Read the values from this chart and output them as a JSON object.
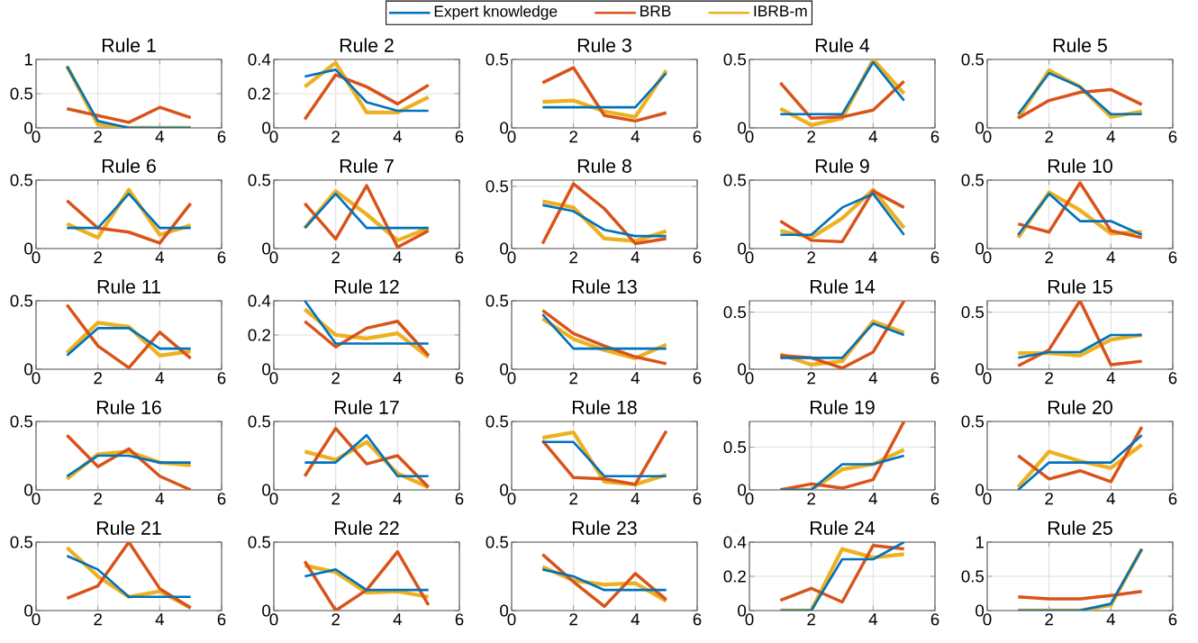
{
  "chart_data": [
    {
      "type": "line",
      "title": "Rule 1",
      "x": [
        1,
        2,
        3,
        4,
        5
      ],
      "xlim": [
        0,
        6
      ],
      "xticks": [
        0,
        2,
        4,
        6
      ],
      "ylim": [
        0,
        1
      ],
      "yticks": [
        0,
        0.5,
        1
      ],
      "grid": true,
      "legend": "top",
      "series": [
        {
          "name": "Expert knowledge",
          "color": "#0072bd",
          "values": [
            0.9,
            0.1,
            0,
            0,
            0
          ]
        },
        {
          "name": "BRB",
          "color": "#d95319",
          "values": [
            0.28,
            0.18,
            0.08,
            0.3,
            0.15
          ]
        },
        {
          "name": "IBRB-m",
          "color": "#edb120",
          "values": [
            0.9,
            0.05,
            0,
            0,
            0
          ]
        }
      ]
    },
    {
      "type": "line",
      "title": "Rule 2",
      "x": [
        1,
        2,
        3,
        4,
        5
      ],
      "xlim": [
        0,
        6
      ],
      "xticks": [
        0,
        2,
        4,
        6
      ],
      "ylim": [
        0,
        0.4
      ],
      "yticks": [
        0,
        0.2,
        0.4
      ],
      "grid": true,
      "series": [
        {
          "color": "#0072bd",
          "values": [
            0.3,
            0.34,
            0.15,
            0.1,
            0.1
          ]
        },
        {
          "color": "#d95319",
          "values": [
            0.05,
            0.31,
            0.24,
            0.14,
            0.25
          ]
        },
        {
          "color": "#edb120",
          "values": [
            0.24,
            0.38,
            0.09,
            0.09,
            0.18
          ]
        }
      ]
    },
    {
      "type": "line",
      "title": "Rule 3",
      "x": [
        1,
        2,
        3,
        4,
        5
      ],
      "xlim": [
        0,
        6
      ],
      "xticks": [
        0,
        2,
        4,
        6
      ],
      "ylim": [
        0,
        0.5
      ],
      "yticks": [
        0,
        0.5
      ],
      "grid": true,
      "series": [
        {
          "color": "#0072bd",
          "values": [
            0.15,
            0.15,
            0.15,
            0.15,
            0.4
          ]
        },
        {
          "color": "#d95319",
          "values": [
            0.33,
            0.44,
            0.09,
            0.05,
            0.11
          ]
        },
        {
          "color": "#edb120",
          "values": [
            0.19,
            0.2,
            0.12,
            0.08,
            0.42
          ]
        }
      ]
    },
    {
      "type": "line",
      "title": "Rule 4",
      "x": [
        1,
        2,
        3,
        4,
        5
      ],
      "xlim": [
        0,
        6
      ],
      "xticks": [
        0,
        2,
        4,
        6
      ],
      "ylim": [
        0,
        0.5
      ],
      "yticks": [
        0,
        0.5
      ],
      "grid": true,
      "series": [
        {
          "color": "#0072bd",
          "values": [
            0.1,
            0.1,
            0.1,
            0.48,
            0.2
          ]
        },
        {
          "color": "#d95319",
          "values": [
            0.33,
            0.07,
            0.08,
            0.13,
            0.34
          ]
        },
        {
          "color": "#edb120",
          "values": [
            0.14,
            0.02,
            0.07,
            0.5,
            0.25
          ]
        }
      ]
    },
    {
      "type": "line",
      "title": "Rule 5",
      "x": [
        1,
        2,
        3,
        4,
        5
      ],
      "xlim": [
        0,
        6
      ],
      "xticks": [
        0,
        2,
        4,
        6
      ],
      "ylim": [
        0,
        0.5
      ],
      "yticks": [
        0,
        0.5
      ],
      "grid": true,
      "series": [
        {
          "color": "#0072bd",
          "values": [
            0.1,
            0.4,
            0.3,
            0.1,
            0.1
          ]
        },
        {
          "color": "#d95319",
          "values": [
            0.07,
            0.2,
            0.26,
            0.28,
            0.17
          ]
        },
        {
          "color": "#edb120",
          "values": [
            0.07,
            0.42,
            0.3,
            0.08,
            0.12
          ]
        }
      ]
    },
    {
      "type": "line",
      "title": "Rule 6",
      "x": [
        1,
        2,
        3,
        4,
        5
      ],
      "xlim": [
        0,
        6
      ],
      "xticks": [
        0,
        2,
        4,
        6
      ],
      "ylim": [
        0,
        0.5
      ],
      "yticks": [
        0,
        0.5
      ],
      "grid": true,
      "series": [
        {
          "color": "#0072bd",
          "values": [
            0.15,
            0.15,
            0.4,
            0.15,
            0.15
          ]
        },
        {
          "color": "#d95319",
          "values": [
            0.35,
            0.15,
            0.12,
            0.04,
            0.33
          ]
        },
        {
          "color": "#edb120",
          "values": [
            0.18,
            0.08,
            0.43,
            0.1,
            0.17
          ]
        }
      ]
    },
    {
      "type": "line",
      "title": "Rule 7",
      "x": [
        1,
        2,
        3,
        4,
        5
      ],
      "xlim": [
        0,
        6
      ],
      "xticks": [
        0,
        2,
        4,
        6
      ],
      "ylim": [
        0,
        0.5
      ],
      "yticks": [
        0,
        0.5
      ],
      "grid": true,
      "series": [
        {
          "color": "#0072bd",
          "values": [
            0.15,
            0.4,
            0.15,
            0.15,
            0.15
          ]
        },
        {
          "color": "#d95319",
          "values": [
            0.33,
            0.07,
            0.46,
            0.01,
            0.13
          ]
        },
        {
          "color": "#edb120",
          "values": [
            0.15,
            0.42,
            0.25,
            0.06,
            0.15
          ]
        }
      ]
    },
    {
      "type": "line",
      "title": "Rule 8",
      "x": [
        1,
        2,
        3,
        4,
        5
      ],
      "xlim": [
        0,
        6
      ],
      "xticks": [
        0,
        2,
        4,
        6
      ],
      "ylim": [
        0,
        0.55
      ],
      "yticks": [
        0,
        0.5
      ],
      "grid": true,
      "series": [
        {
          "color": "#0072bd",
          "values": [
            0.35,
            0.3,
            0.15,
            0.1,
            0.1
          ]
        },
        {
          "color": "#d95319",
          "values": [
            0.04,
            0.52,
            0.32,
            0.04,
            0.08
          ]
        },
        {
          "color": "#edb120",
          "values": [
            0.38,
            0.33,
            0.08,
            0.06,
            0.14
          ]
        }
      ]
    },
    {
      "type": "line",
      "title": "Rule 9",
      "x": [
        1,
        2,
        3,
        4,
        5
      ],
      "xlim": [
        0,
        6
      ],
      "xticks": [
        0,
        2,
        4,
        6
      ],
      "ylim": [
        0,
        0.5
      ],
      "yticks": [
        0,
        0.5
      ],
      "grid": true,
      "series": [
        {
          "color": "#0072bd",
          "values": [
            0.1,
            0.1,
            0.3,
            0.4,
            0.1
          ]
        },
        {
          "color": "#d95319",
          "values": [
            0.2,
            0.06,
            0.05,
            0.42,
            0.3
          ]
        },
        {
          "color": "#edb120",
          "values": [
            0.13,
            0.08,
            0.22,
            0.43,
            0.15
          ]
        }
      ]
    },
    {
      "type": "line",
      "title": "Rule 10",
      "x": [
        1,
        2,
        3,
        4,
        5
      ],
      "xlim": [
        0,
        6
      ],
      "xticks": [
        0,
        2,
        4,
        6
      ],
      "ylim": [
        0,
        0.5
      ],
      "yticks": [
        0,
        0.5
      ],
      "grid": true,
      "series": [
        {
          "color": "#0072bd",
          "values": [
            0.1,
            0.4,
            0.2,
            0.2,
            0.1
          ]
        },
        {
          "color": "#d95319",
          "values": [
            0.18,
            0.12,
            0.48,
            0.13,
            0.08
          ]
        },
        {
          "color": "#edb120",
          "values": [
            0.08,
            0.41,
            0.28,
            0.11,
            0.12
          ]
        }
      ]
    },
    {
      "type": "line",
      "title": "Rule 11",
      "x": [
        1,
        2,
        3,
        4,
        5
      ],
      "xlim": [
        0,
        6
      ],
      "xticks": [
        0,
        2,
        4,
        6
      ],
      "ylim": [
        0,
        0.5
      ],
      "yticks": [
        0,
        0.5
      ],
      "grid": true,
      "series": [
        {
          "color": "#0072bd",
          "values": [
            0.1,
            0.3,
            0.3,
            0.15,
            0.15
          ]
        },
        {
          "color": "#d95319",
          "values": [
            0.47,
            0.17,
            0.01,
            0.27,
            0.08
          ]
        },
        {
          "color": "#edb120",
          "values": [
            0.12,
            0.34,
            0.31,
            0.1,
            0.13
          ]
        }
      ]
    },
    {
      "type": "line",
      "title": "Rule 12",
      "x": [
        1,
        2,
        3,
        4,
        5
      ],
      "xlim": [
        0,
        6
      ],
      "xticks": [
        0,
        2,
        4,
        6
      ],
      "ylim": [
        0,
        0.4
      ],
      "yticks": [
        0,
        0.2,
        0.4
      ],
      "grid": true,
      "series": [
        {
          "color": "#0072bd",
          "values": [
            0.4,
            0.15,
            0.15,
            0.15,
            0.15
          ]
        },
        {
          "color": "#d95319",
          "values": [
            0.28,
            0.13,
            0.24,
            0.28,
            0.08
          ]
        },
        {
          "color": "#edb120",
          "values": [
            0.35,
            0.2,
            0.18,
            0.21,
            0.07
          ]
        }
      ]
    },
    {
      "type": "line",
      "title": "Rule 13",
      "x": [
        1,
        2,
        3,
        4,
        5
      ],
      "xlim": [
        0,
        6
      ],
      "xticks": [
        0,
        2,
        4,
        6
      ],
      "ylim": [
        0,
        0.5
      ],
      "yticks": [
        0,
        0.5
      ],
      "grid": true,
      "series": [
        {
          "color": "#0072bd",
          "values": [
            0.4,
            0.15,
            0.15,
            0.15,
            0.15
          ]
        },
        {
          "color": "#d95319",
          "values": [
            0.43,
            0.26,
            0.17,
            0.09,
            0.04
          ]
        },
        {
          "color": "#edb120",
          "values": [
            0.37,
            0.22,
            0.14,
            0.08,
            0.18
          ]
        }
      ]
    },
    {
      "type": "line",
      "title": "Rule 14",
      "x": [
        1,
        2,
        3,
        4,
        5
      ],
      "xlim": [
        0,
        6
      ],
      "xticks": [
        0,
        2,
        4,
        6
      ],
      "ylim": [
        0,
        0.6
      ],
      "yticks": [
        0,
        0.5
      ],
      "grid": true,
      "series": [
        {
          "color": "#0072bd",
          "values": [
            0.1,
            0.1,
            0.1,
            0.4,
            0.3
          ]
        },
        {
          "color": "#d95319",
          "values": [
            0.12,
            0.1,
            0.01,
            0.15,
            0.6
          ]
        },
        {
          "color": "#edb120",
          "values": [
            0.13,
            0.04,
            0.07,
            0.42,
            0.32
          ]
        }
      ]
    },
    {
      "type": "line",
      "title": "Rule 15",
      "x": [
        1,
        2,
        3,
        4,
        5
      ],
      "xlim": [
        0,
        6
      ],
      "xticks": [
        0,
        2,
        4,
        6
      ],
      "ylim": [
        0,
        0.6
      ],
      "yticks": [
        0,
        0.5
      ],
      "grid": true,
      "series": [
        {
          "color": "#0072bd",
          "values": [
            0.1,
            0.15,
            0.15,
            0.3,
            0.3
          ]
        },
        {
          "color": "#d95319",
          "values": [
            0.03,
            0.17,
            0.6,
            0.04,
            0.07
          ]
        },
        {
          "color": "#edb120",
          "values": [
            0.14,
            0.14,
            0.12,
            0.26,
            0.3
          ]
        }
      ]
    },
    {
      "type": "line",
      "title": "Rule 16",
      "x": [
        1,
        2,
        3,
        4,
        5
      ],
      "xlim": [
        0,
        6
      ],
      "xticks": [
        0,
        2,
        4,
        6
      ],
      "ylim": [
        0,
        0.5
      ],
      "yticks": [
        0,
        0.5
      ],
      "grid": true,
      "series": [
        {
          "color": "#0072bd",
          "values": [
            0.1,
            0.25,
            0.25,
            0.2,
            0.2
          ]
        },
        {
          "color": "#d95319",
          "values": [
            0.4,
            0.17,
            0.3,
            0.1,
            0
          ]
        },
        {
          "color": "#edb120",
          "values": [
            0.08,
            0.26,
            0.28,
            0.2,
            0.18
          ]
        }
      ]
    },
    {
      "type": "line",
      "title": "Rule 17",
      "x": [
        1,
        2,
        3,
        4,
        5
      ],
      "xlim": [
        0,
        6
      ],
      "xticks": [
        0,
        2,
        4,
        6
      ],
      "ylim": [
        0,
        0.5
      ],
      "yticks": [
        0,
        0.5
      ],
      "grid": true,
      "series": [
        {
          "color": "#0072bd",
          "values": [
            0.2,
            0.2,
            0.4,
            0.1,
            0.1
          ]
        },
        {
          "color": "#d95319",
          "values": [
            0.1,
            0.45,
            0.19,
            0.25,
            0.02
          ]
        },
        {
          "color": "#edb120",
          "values": [
            0.28,
            0.22,
            0.35,
            0.12,
            0.02
          ]
        }
      ]
    },
    {
      "type": "line",
      "title": "Rule 18",
      "x": [
        1,
        2,
        3,
        4,
        5
      ],
      "xlim": [
        0,
        6
      ],
      "xticks": [
        0,
        2,
        4,
        6
      ],
      "ylim": [
        0,
        0.5
      ],
      "yticks": [
        0,
        0.5
      ],
      "grid": true,
      "series": [
        {
          "color": "#0072bd",
          "values": [
            0.35,
            0.35,
            0.1,
            0.1,
            0.1
          ]
        },
        {
          "color": "#d95319",
          "values": [
            0.36,
            0.09,
            0.08,
            0.04,
            0.43
          ]
        },
        {
          "color": "#edb120",
          "values": [
            0.38,
            0.42,
            0.06,
            0.04,
            0.11
          ]
        }
      ]
    },
    {
      "type": "line",
      "title": "Rule 19",
      "x": [
        1,
        2,
        3,
        4,
        5
      ],
      "xlim": [
        0,
        6
      ],
      "xticks": [
        0,
        2,
        4,
        6
      ],
      "ylim": [
        0,
        0.8
      ],
      "yticks": [
        0,
        0.5
      ],
      "grid": true,
      "series": [
        {
          "color": "#0072bd",
          "values": [
            0,
            0,
            0.3,
            0.3,
            0.4
          ]
        },
        {
          "color": "#d95319",
          "values": [
            0,
            0.07,
            0.02,
            0.12,
            0.8
          ]
        },
        {
          "color": "#edb120",
          "values": [
            0,
            0,
            0.24,
            0.3,
            0.47
          ]
        }
      ]
    },
    {
      "type": "line",
      "title": "Rule 20",
      "x": [
        1,
        2,
        3,
        4,
        5
      ],
      "xlim": [
        0,
        6
      ],
      "xticks": [
        0,
        2,
        4,
        6
      ],
      "ylim": [
        0,
        0.5
      ],
      "yticks": [
        0,
        0.5
      ],
      "grid": true,
      "series": [
        {
          "color": "#0072bd",
          "values": [
            0,
            0.2,
            0.2,
            0.2,
            0.4
          ]
        },
        {
          "color": "#d95319",
          "values": [
            0.25,
            0.08,
            0.14,
            0.06,
            0.46
          ]
        },
        {
          "color": "#edb120",
          "values": [
            0.02,
            0.28,
            0.21,
            0.16,
            0.33
          ]
        }
      ]
    },
    {
      "type": "line",
      "title": "Rule 21",
      "x": [
        1,
        2,
        3,
        4,
        5
      ],
      "xlim": [
        0,
        6
      ],
      "xticks": [
        0,
        2,
        4,
        6
      ],
      "ylim": [
        0,
        0.5
      ],
      "yticks": [
        0,
        0.5
      ],
      "grid": true,
      "series": [
        {
          "color": "#0072bd",
          "values": [
            0.4,
            0.3,
            0.1,
            0.1,
            0.1
          ]
        },
        {
          "color": "#d95319",
          "values": [
            0.09,
            0.18,
            0.5,
            0.16,
            0.02
          ]
        },
        {
          "color": "#edb120",
          "values": [
            0.46,
            0.25,
            0.1,
            0.14,
            0.02
          ]
        }
      ]
    },
    {
      "type": "line",
      "title": "Rule 22",
      "x": [
        1,
        2,
        3,
        4,
        5
      ],
      "xlim": [
        0,
        6
      ],
      "xticks": [
        0,
        2,
        4,
        6
      ],
      "ylim": [
        0,
        0.5
      ],
      "yticks": [
        0,
        0.5
      ],
      "grid": true,
      "series": [
        {
          "color": "#0072bd",
          "values": [
            0.25,
            0.3,
            0.15,
            0.15,
            0.15
          ]
        },
        {
          "color": "#d95319",
          "values": [
            0.36,
            0,
            0.15,
            0.43,
            0.04
          ]
        },
        {
          "color": "#edb120",
          "values": [
            0.33,
            0.28,
            0.13,
            0.14,
            0.1
          ]
        }
      ]
    },
    {
      "type": "line",
      "title": "Rule 23",
      "x": [
        1,
        2,
        3,
        4,
        5
      ],
      "xlim": [
        0,
        6
      ],
      "xticks": [
        0,
        2,
        4,
        6
      ],
      "ylim": [
        0,
        0.5
      ],
      "yticks": [
        0,
        0.5
      ],
      "grid": true,
      "series": [
        {
          "color": "#0072bd",
          "values": [
            0.3,
            0.25,
            0.15,
            0.15,
            0.15
          ]
        },
        {
          "color": "#d95319",
          "values": [
            0.41,
            0.21,
            0.03,
            0.27,
            0.08
          ]
        },
        {
          "color": "#edb120",
          "values": [
            0.32,
            0.22,
            0.19,
            0.2,
            0.07
          ]
        }
      ]
    },
    {
      "type": "line",
      "title": "Rule 24",
      "x": [
        1,
        2,
        3,
        4,
        5
      ],
      "xlim": [
        0,
        6
      ],
      "xticks": [
        0,
        2,
        4,
        6
      ],
      "ylim": [
        0,
        0.4
      ],
      "yticks": [
        0,
        0.2,
        0.4
      ],
      "grid": true,
      "series": [
        {
          "color": "#0072bd",
          "values": [
            0,
            0,
            0.3,
            0.3,
            0.4
          ]
        },
        {
          "color": "#d95319",
          "values": [
            0.06,
            0.13,
            0.05,
            0.38,
            0.36
          ]
        },
        {
          "color": "#edb120",
          "values": [
            0,
            0,
            0.36,
            0.31,
            0.33
          ]
        }
      ]
    },
    {
      "type": "line",
      "title": "Rule 25",
      "x": [
        1,
        2,
        3,
        4,
        5
      ],
      "xlim": [
        0,
        6
      ],
      "xticks": [
        0,
        2,
        4,
        6
      ],
      "ylim": [
        0,
        1
      ],
      "yticks": [
        0,
        0.5,
        1
      ],
      "grid": true,
      "series": [
        {
          "color": "#0072bd",
          "values": [
            0,
            0,
            0,
            0.1,
            0.9
          ]
        },
        {
          "color": "#d95319",
          "values": [
            0.2,
            0.17,
            0.17,
            0.22,
            0.28
          ]
        },
        {
          "color": "#edb120",
          "values": [
            0,
            0,
            0,
            0.08,
            0.9
          ]
        }
      ]
    }
  ]
}
